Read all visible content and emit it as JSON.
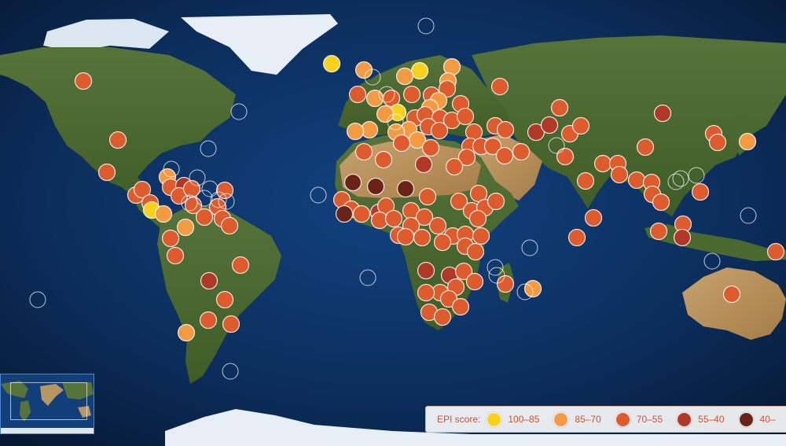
{
  "legend": {
    "title": "EPI score:",
    "items": [
      {
        "label": "100–85",
        "color": "#f6d11d"
      },
      {
        "label": "85–70",
        "color": "#f49a42"
      },
      {
        "label": "70–55",
        "color": "#dd5b2c"
      },
      {
        "label": "55–40",
        "color": "#b03827"
      },
      {
        "label": "40–",
        "color": "#6b2318"
      }
    ]
  },
  "colors": {
    "ocean": "#0b2b57",
    "land": "#4e6b2b",
    "desert": "#b69663",
    "ice": "#e8eef5",
    "outline": "#ffffff"
  }
}
